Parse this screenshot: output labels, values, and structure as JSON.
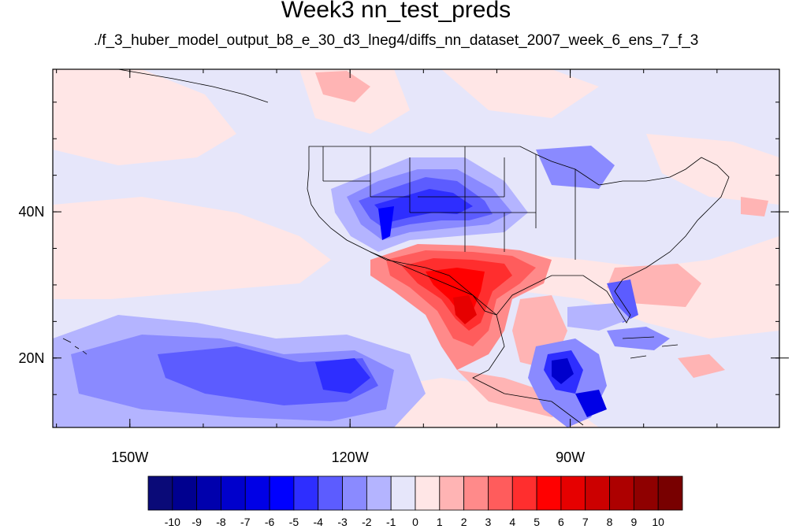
{
  "figure": {
    "title": "Week3 nn_test_preds",
    "subtitle": "./f_3_huber_model_output_b8_e_30_d3_lneg4/diffs_nn_dataset_2007_week_6_ens_7_f_3"
  },
  "map": {
    "projection": "cylindrical equidistant",
    "lon_range": [
      -160.5,
      -61.5
    ],
    "lat_range": [
      10.5,
      59.5
    ],
    "lon_ticks": [
      {
        "value": -150,
        "label": "150W"
      },
      {
        "value": -120,
        "label": "120W"
      },
      {
        "value": -90,
        "label": "90W"
      }
    ],
    "lat_ticks": [
      {
        "value": 40,
        "label": "40N"
      },
      {
        "value": 20,
        "label": "20N"
      }
    ],
    "minor_lon_step": 10,
    "minor_lat_step": 5,
    "features": [
      "US state boundaries",
      "Canada/US border",
      "Mexico/US border",
      "Alaska panhandle coastline",
      "Florida peninsula",
      "Hawaiian Islands",
      "Caribbean islands"
    ]
  },
  "colorbar": {
    "labels": [
      "-10",
      "-9",
      "-8",
      "-7",
      "-6",
      "-5",
      "-4",
      "-3",
      "-2",
      "-1",
      "0",
      "1",
      "2",
      "3",
      "4",
      "5",
      "6",
      "7",
      "8",
      "9",
      "10"
    ],
    "colors": [
      "#0a0a78",
      "#00008f",
      "#0000ad",
      "#0000cc",
      "#0000e6",
      "#0000ff",
      "#2e2eff",
      "#5c5cff",
      "#8a8aff",
      "#b4b4ff",
      "#e6e6fa",
      "#ffe6e6",
      "#ffb4b4",
      "#ff8a8a",
      "#ff5c5c",
      "#ff2e2e",
      "#ff0000",
      "#e60000",
      "#cc0000",
      "#ad0000",
      "#8f0000",
      "#780000"
    ]
  },
  "fields": [
    {
      "name": "southern-us-warm-anomaly",
      "region": "Texas / northern Mexico",
      "level": 6,
      "sign": "positive"
    },
    {
      "name": "interior-west-cold-anomaly",
      "region": "Great Basin / Rockies",
      "level": -5,
      "sign": "negative"
    },
    {
      "name": "central-america-cold-anomaly",
      "region": "Honduras / Nicaragua",
      "level": -8,
      "sign": "negative"
    },
    {
      "name": "eastern-pacific-cold-anomaly",
      "region": "Pacific south of 25N",
      "level": -4,
      "sign": "negative"
    }
  ]
}
